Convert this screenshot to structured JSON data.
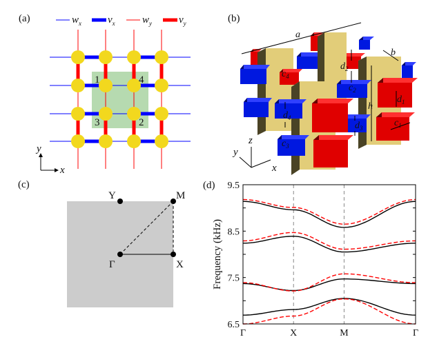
{
  "panels": {
    "a": "(a)",
    "b": "(b)",
    "c": "(c)",
    "d": "(d)"
  },
  "panel_a": {
    "legend": [
      {
        "symbol": "w",
        "sub": "x",
        "color": "#0000ff",
        "style": "thin"
      },
      {
        "symbol": "v",
        "sub": "x",
        "color": "#0000ff",
        "style": "thick"
      },
      {
        "symbol": "w",
        "sub": "y",
        "color": "#ff0000",
        "style": "thin"
      },
      {
        "symbol": "v",
        "sub": "y",
        "color": "#ff0000",
        "style": "thick"
      }
    ],
    "site_labels": [
      "1",
      "4",
      "3",
      "2"
    ],
    "axis_x": "x",
    "axis_y": "y",
    "colors": {
      "node": "#f2d81e",
      "unit_cell": "#b6dab0"
    }
  },
  "panel_b": {
    "labels": {
      "a": "a",
      "b": "b",
      "h": "h",
      "c1": [
        "c",
        "1"
      ],
      "c2": [
        "c",
        "2"
      ],
      "c3": [
        "c",
        "3"
      ],
      "c4": [
        "c",
        "4"
      ],
      "d1": [
        "d",
        "1"
      ],
      "d2": [
        "d",
        "2"
      ],
      "d3": [
        "d",
        "3"
      ],
      "d4": [
        "d",
        "4"
      ]
    },
    "axes": {
      "x": "x",
      "y": "y",
      "z": "z"
    },
    "colors": {
      "pillar": "#e6d17f",
      "red": "#e00000",
      "blue": "#0018e0"
    }
  },
  "panel_c": {
    "points": {
      "gamma": "Γ",
      "x": "X",
      "m": "M",
      "y": "Y"
    }
  },
  "chart_data": {
    "type": "line",
    "ylabel": "Frequency (kHz)",
    "xlabel": "",
    "ylim": [
      6.5,
      9.5
    ],
    "yticks": [
      "9.5",
      "8.5",
      "7.5",
      "6.5"
    ],
    "categories": [
      "Γ",
      "X",
      "M",
      "Γ"
    ],
    "k_path": [
      0,
      1,
      2,
      3.414
    ],
    "grid": "dashed vertical lines at X and M",
    "series": [
      {
        "style": "solid-black",
        "values": [
          6.69,
          6.81,
          7.05,
          6.69
        ]
      },
      {
        "style": "solid-black",
        "values": [
          7.37,
          7.22,
          7.47,
          7.37
        ]
      },
      {
        "style": "solid-black",
        "values": [
          8.24,
          8.39,
          8.05,
          8.24
        ]
      },
      {
        "style": "solid-black",
        "values": [
          9.14,
          8.96,
          8.58,
          9.14
        ]
      },
      {
        "style": "dashed-red",
        "values": [
          6.5,
          6.67,
          7.04,
          6.5
        ]
      },
      {
        "style": "dashed-red",
        "values": [
          7.39,
          7.21,
          7.58,
          7.39
        ]
      },
      {
        "style": "dashed-red",
        "values": [
          8.29,
          8.47,
          8.11,
          8.29
        ]
      },
      {
        "style": "dashed-red",
        "values": [
          9.18,
          9.01,
          8.65,
          9.18
        ]
      }
    ]
  }
}
